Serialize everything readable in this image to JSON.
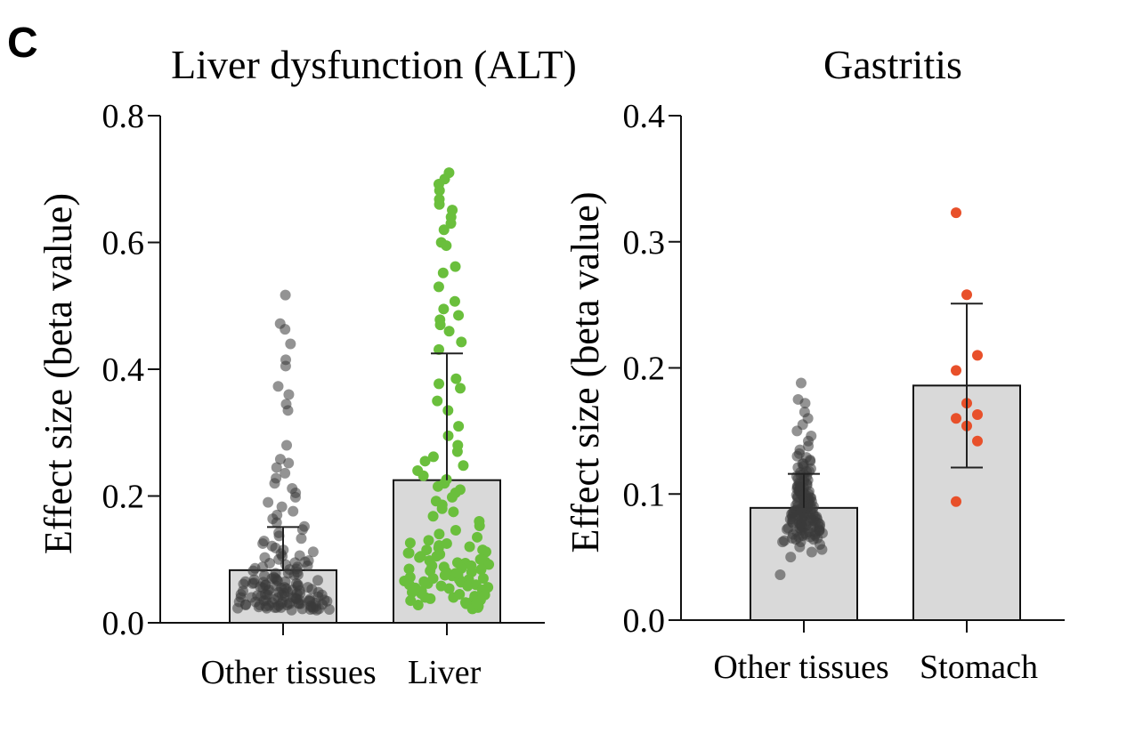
{
  "panel_label": "C",
  "chart_data": [
    {
      "type": "bar",
      "title": "Liver dysfunction (ALT)",
      "xlabel": "",
      "ylabel": "Effect size (beta value)",
      "ylim": [
        0,
        0.8
      ],
      "yticks": [
        0.0,
        0.2,
        0.4,
        0.6,
        0.8
      ],
      "ytick_labels": [
        "0.0",
        "0.2",
        "0.4",
        "0.6",
        "0.8"
      ],
      "categories": [
        "Other tissues",
        "Liver"
      ],
      "values": [
        0.083,
        0.225
      ],
      "error_upper": [
        0.151,
        0.425
      ],
      "bar_color": "#d9d9d9",
      "point_colors": [
        "#3a3a3a",
        "#6abf3c"
      ],
      "points": [
        [
          0.517,
          0.472,
          0.463,
          0.44,
          0.415,
          0.405,
          0.373,
          0.36,
          0.345,
          0.335,
          0.28,
          0.258,
          0.252,
          0.245,
          0.236,
          0.228,
          0.22,
          0.212,
          0.205,
          0.198,
          0.19,
          0.183,
          0.176,
          0.17,
          0.164,
          0.158,
          0.152,
          0.147,
          0.142,
          0.137,
          0.133,
          0.129,
          0.125,
          0.121,
          0.118,
          0.115,
          0.112,
          0.109,
          0.106,
          0.103,
          0.1,
          0.098,
          0.096,
          0.094,
          0.092,
          0.09,
          0.088,
          0.086,
          0.084,
          0.082,
          0.08,
          0.078,
          0.076,
          0.074,
          0.072,
          0.07,
          0.068,
          0.067,
          0.066,
          0.065,
          0.064,
          0.063,
          0.062,
          0.061,
          0.06,
          0.059,
          0.058,
          0.057,
          0.056,
          0.055,
          0.054,
          0.053,
          0.052,
          0.051,
          0.05,
          0.049,
          0.048,
          0.047,
          0.046,
          0.045,
          0.044,
          0.044,
          0.043,
          0.042,
          0.041,
          0.04,
          0.04,
          0.039,
          0.038,
          0.037,
          0.037,
          0.036,
          0.035,
          0.035,
          0.034,
          0.033,
          0.033,
          0.032,
          0.031,
          0.031,
          0.03,
          0.03,
          0.029,
          0.029,
          0.028,
          0.028,
          0.027,
          0.027,
          0.026,
          0.026,
          0.025,
          0.025,
          0.024,
          0.024,
          0.023,
          0.023,
          0.022,
          0.022,
          0.021,
          0.021,
          0.02,
          0.02,
          0.035,
          0.045,
          0.055,
          0.065,
          0.075,
          0.085,
          0.095,
          0.105,
          0.038,
          0.048,
          0.058,
          0.068,
          0.078,
          0.088,
          0.03,
          0.04,
          0.05,
          0.06,
          0.07,
          0.032,
          0.042,
          0.052,
          0.062,
          0.028,
          0.036,
          0.046,
          0.056,
          0.025,
          0.034,
          0.044,
          0.024,
          0.03,
          0.04,
          0.022,
          0.027,
          0.033
        ],
        [
          0.71,
          0.7,
          0.692,
          0.682,
          0.668,
          0.66,
          0.651,
          0.64,
          0.63,
          0.62,
          0.6,
          0.595,
          0.562,
          0.552,
          0.53,
          0.507,
          0.495,
          0.485,
          0.478,
          0.47,
          0.46,
          0.443,
          0.431,
          0.385,
          0.377,
          0.37,
          0.35,
          0.335,
          0.31,
          0.295,
          0.28,
          0.27,
          0.262,
          0.255,
          0.248,
          0.24,
          0.232,
          0.226,
          0.22,
          0.215,
          0.21,
          0.205,
          0.198,
          0.192,
          0.186,
          0.18,
          0.175,
          0.168,
          0.16,
          0.153,
          0.146,
          0.14,
          0.135,
          0.13,
          0.126,
          0.122,
          0.118,
          0.115,
          0.112,
          0.11,
          0.108,
          0.105,
          0.103,
          0.1,
          0.098,
          0.096,
          0.094,
          0.092,
          0.09,
          0.088,
          0.086,
          0.084,
          0.082,
          0.08,
          0.078,
          0.076,
          0.074,
          0.072,
          0.07,
          0.068,
          0.066,
          0.064,
          0.062,
          0.06,
          0.058,
          0.056,
          0.054,
          0.052,
          0.05,
          0.048,
          0.046,
          0.044,
          0.042,
          0.04,
          0.038,
          0.036,
          0.034,
          0.032,
          0.03,
          0.028,
          0.026,
          0.024,
          0.022,
          0.05,
          0.055,
          0.06,
          0.065,
          0.07,
          0.075,
          0.08,
          0.085,
          0.09,
          0.095,
          0.1,
          0.105,
          0.11,
          0.115,
          0.12,
          0.125,
          0.045,
          0.04,
          0.035,
          0.03,
          0.058,
          0.068,
          0.078
        ]
      ]
    },
    {
      "type": "bar",
      "title": "Gastritis",
      "xlabel": "",
      "ylabel": "Effect size (beta value)",
      "ylim": [
        0,
        0.4
      ],
      "yticks": [
        0.0,
        0.1,
        0.2,
        0.3,
        0.4
      ],
      "ytick_labels": [
        "0.0",
        "0.1",
        "0.2",
        "0.3",
        "0.4"
      ],
      "categories": [
        "Other tissues",
        "Stomach"
      ],
      "values": [
        0.089,
        0.186
      ],
      "error_upper": [
        0.116,
        0.251
      ],
      "error_lower": [
        null,
        0.121
      ],
      "bar_color": "#d9d9d9",
      "point_colors": [
        "#3a3a3a",
        "#e8502a"
      ],
      "points": [
        [
          0.188,
          0.175,
          0.172,
          0.165,
          0.16,
          0.155,
          0.15,
          0.146,
          0.142,
          0.138,
          0.135,
          0.132,
          0.129,
          0.126,
          0.124,
          0.122,
          0.12,
          0.118,
          0.116,
          0.114,
          0.112,
          0.11,
          0.108,
          0.107,
          0.106,
          0.105,
          0.104,
          0.103,
          0.102,
          0.101,
          0.1,
          0.099,
          0.098,
          0.097,
          0.096,
          0.095,
          0.094,
          0.093,
          0.092,
          0.091,
          0.09,
          0.089,
          0.088,
          0.087,
          0.086,
          0.085,
          0.084,
          0.083,
          0.082,
          0.081,
          0.08,
          0.079,
          0.078,
          0.077,
          0.076,
          0.075,
          0.074,
          0.073,
          0.072,
          0.071,
          0.07,
          0.069,
          0.068,
          0.067,
          0.066,
          0.065,
          0.064,
          0.063,
          0.062,
          0.06,
          0.058,
          0.056,
          0.054,
          0.05,
          0.036,
          0.085,
          0.088,
          0.091,
          0.094,
          0.097,
          0.1,
          0.103,
          0.106,
          0.109,
          0.112,
          0.115,
          0.118,
          0.121,
          0.124,
          0.127,
          0.13,
          0.075,
          0.078,
          0.081,
          0.084,
          0.087,
          0.09,
          0.093,
          0.096,
          0.099,
          0.102,
          0.105,
          0.108,
          0.111,
          0.114,
          0.117,
          0.07,
          0.073,
          0.076,
          0.079,
          0.082,
          0.085,
          0.088,
          0.091,
          0.094,
          0.097,
          0.1,
          0.103,
          0.106,
          0.068,
          0.071,
          0.074,
          0.077,
          0.08,
          0.083,
          0.086,
          0.089,
          0.092,
          0.095,
          0.098,
          0.101,
          0.066,
          0.069,
          0.072,
          0.075,
          0.078,
          0.081,
          0.084,
          0.087,
          0.09,
          0.093,
          0.096,
          0.064,
          0.067,
          0.07,
          0.073,
          0.076,
          0.079,
          0.082,
          0.085,
          0.088,
          0.062,
          0.065,
          0.068,
          0.071,
          0.074,
          0.077,
          0.08,
          0.083
        ],
        [
          0.323,
          0.258,
          0.21,
          0.198,
          0.172,
          0.163,
          0.16,
          0.154,
          0.142,
          0.094
        ]
      ]
    }
  ]
}
